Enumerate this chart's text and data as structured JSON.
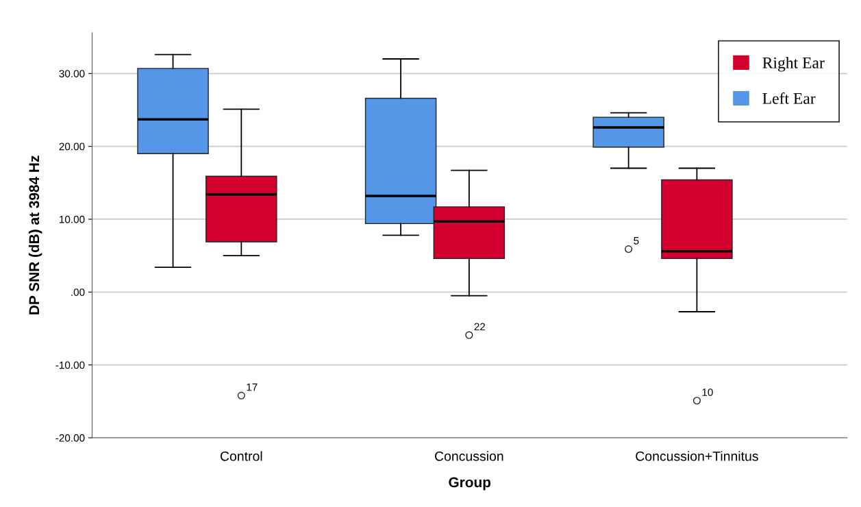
{
  "chart_data": {
    "type": "box",
    "xlabel": "Group",
    "ylabel": "DP SNR (dB) at 3984 Hz",
    "categories": [
      "Control",
      "Concussion",
      "Concussion+Tinnitus"
    ],
    "series": [
      {
        "name": "Left Ear",
        "color": "#5596e6",
        "boxes": [
          {
            "low": 3.4,
            "q1": 19.0,
            "median": 23.7,
            "q3": 30.7,
            "high": 32.6
          },
          {
            "low": 7.8,
            "q1": 9.4,
            "median": 13.2,
            "q3": 26.6,
            "high": 32.0
          },
          {
            "low": 17.0,
            "q1": 19.9,
            "median": 22.6,
            "q3": 24.0,
            "high": 24.6,
            "outliers": [
              5.9
            ]
          }
        ]
      },
      {
        "name": "Right Ear",
        "color": "#d3002f",
        "boxes": [
          {
            "low": 5.0,
            "q1": 6.9,
            "median": 13.4,
            "q3": 15.9,
            "high": 25.1,
            "outliers": [
              -14.2
            ]
          },
          {
            "low": -0.5,
            "q1": 4.6,
            "median": 9.7,
            "q3": 11.7,
            "high": 16.7,
            "outliers": [
              -5.9
            ]
          },
          {
            "low": -2.7,
            "q1": 4.6,
            "median": 5.6,
            "q3": 15.4,
            "high": 17.0,
            "outliers": [
              -14.9
            ]
          }
        ]
      }
    ],
    "annotations": [
      "17",
      "22",
      "5",
      "10"
    ],
    "ylim": [
      -20,
      35.6
    ],
    "yticks": [
      {
        "value": -20,
        "label": "-20.00"
      },
      {
        "value": -10,
        "label": "-10.00"
      },
      {
        "value": 0,
        "label": ".00"
      },
      {
        "value": 10,
        "label": "10.00"
      },
      {
        "value": 20,
        "label": "20.00"
      },
      {
        "value": 30,
        "label": "30.00"
      }
    ],
    "grid": "y",
    "legend": "top right"
  }
}
